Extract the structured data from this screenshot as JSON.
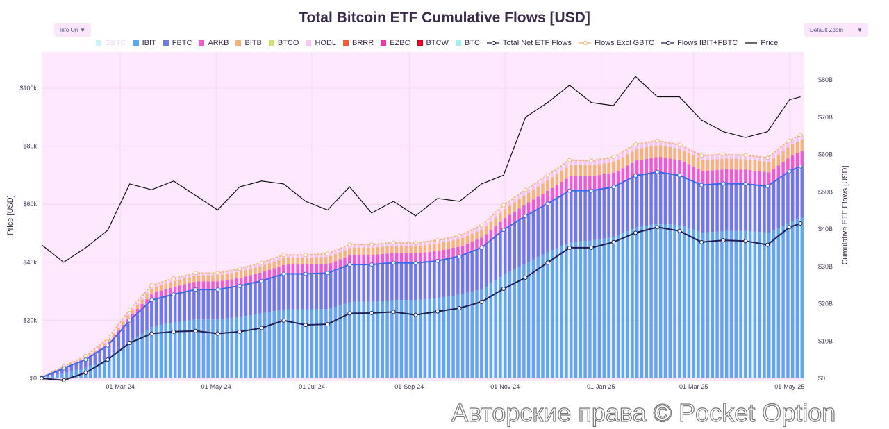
{
  "chart_data": {
    "type": "bar",
    "title": "Total Bitcoin ETF Cumulative Flows [USD]",
    "ylabel_left": "Price [USD]",
    "ylabel_right": "Cumulative ETF Flows [USD]",
    "ylim_left": [
      0,
      112000
    ],
    "ylim_right": [
      0,
      87.5
    ],
    "left_ticks": [
      "$0",
      "$20k",
      "$40k",
      "$60k",
      "$80k",
      "$100k"
    ],
    "left_tick_values": [
      0,
      20000,
      40000,
      60000,
      80000,
      100000
    ],
    "right_ticks": [
      "$0",
      "$10B",
      "$20B",
      "$30B",
      "$40B",
      "$50B",
      "$60B",
      "$70B",
      "$80B"
    ],
    "right_tick_values": [
      0,
      10,
      20,
      30,
      40,
      50,
      60,
      70,
      80
    ],
    "x_ticks": [
      "01-Mar-24",
      "01-May-24",
      "01-Jul-24",
      "01-Sep-24",
      "01-Nov-24",
      "01-Jan-25",
      "01-Mar-25",
      "01-May-25"
    ],
    "x_tick_dates": [
      "2024-03-01",
      "2024-05-01",
      "2024-07-01",
      "2024-09-01",
      "2024-11-01",
      "2025-01-01",
      "2025-03-01",
      "2025-05-01"
    ],
    "x_range": [
      "2024-01-11",
      "2025-05-10"
    ],
    "grid": true,
    "legend_placement": "top",
    "dates": [
      "2024-01-11",
      "2024-01-25",
      "2024-02-08",
      "2024-02-22",
      "2024-03-07",
      "2024-03-21",
      "2024-04-04",
      "2024-04-18",
      "2024-05-02",
      "2024-05-16",
      "2024-05-30",
      "2024-06-13",
      "2024-06-27",
      "2024-07-11",
      "2024-07-25",
      "2024-08-08",
      "2024-08-22",
      "2024-09-05",
      "2024-09-19",
      "2024-10-03",
      "2024-10-17",
      "2024-10-31",
      "2024-11-14",
      "2024-11-28",
      "2024-12-12",
      "2024-12-26",
      "2025-01-09",
      "2025-01-23",
      "2025-02-06",
      "2025-02-20",
      "2025-03-06",
      "2025-03-20",
      "2025-04-03",
      "2025-04-17",
      "2025-05-01",
      "2025-05-08"
    ],
    "series": [
      {
        "name": "IBIT",
        "color": "#5aa8f0",
        "values": [
          0.1,
          1.5,
          3.0,
          5.5,
          10,
          14,
          15,
          15.8,
          15.8,
          16.5,
          17.5,
          18.5,
          18.5,
          18.6,
          20.5,
          20.5,
          21,
          21,
          21.5,
          22.5,
          24,
          28,
          31,
          34,
          36.5,
          37,
          38,
          40.5,
          41.5,
          41,
          39,
          39.5,
          39.5,
          39,
          42,
          43
        ]
      },
      {
        "name": "FBTC",
        "color": "#6a7ae8",
        "values": [
          0.1,
          1.2,
          2.0,
          3.3,
          5.5,
          7,
          7.5,
          8,
          8,
          8.3,
          8.6,
          9.5,
          9.5,
          9.6,
          10,
          10,
          10,
          9.9,
          10,
          10.2,
          11,
          11.8,
          12.5,
          12.8,
          13.8,
          13.3,
          13.3,
          13.8,
          13.8,
          13.4,
          12.8,
          12.7,
          12.6,
          12.5,
          13.5,
          13.8
        ]
      },
      {
        "name": "ARKB",
        "color": "#f05ad2",
        "values": [
          0.04,
          0.24,
          0.48,
          0.88,
          1.4,
          1.9,
          2.1,
          2.2,
          2.2,
          2.2,
          2.4,
          2.5,
          2.5,
          2.5,
          2.6,
          2.6,
          2.6,
          2.6,
          2.7,
          2.7,
          2.9,
          3.2,
          3.4,
          3.7,
          4.0,
          3.9,
          3.9,
          4.1,
          4.1,
          4.0,
          3.8,
          3.8,
          3.8,
          3.7,
          4.0,
          4.1
        ]
      },
      {
        "name": "BITB",
        "color": "#f7b47a",
        "values": [
          0.03,
          0.18,
          0.36,
          0.66,
          1.05,
          1.44,
          1.56,
          1.62,
          1.62,
          1.68,
          1.77,
          1.86,
          1.86,
          1.89,
          1.95,
          1.95,
          1.98,
          1.95,
          2.0,
          2.04,
          2.2,
          2.4,
          2.6,
          2.8,
          3.0,
          2.9,
          2.9,
          3.1,
          3.1,
          3.0,
          2.9,
          2.9,
          2.8,
          2.8,
          3.0,
          3.1
        ]
      },
      {
        "name": "HODL",
        "color": "#f6c6f2",
        "values": [
          0,
          0.1,
          0.1,
          0.3,
          0.4,
          0.6,
          0.6,
          0.6,
          0.6,
          0.7,
          0.7,
          0.7,
          0.7,
          0.8,
          0.8,
          0.8,
          0.8,
          0.8,
          0.8,
          0.8,
          0.9,
          1.0,
          1.0,
          1.1,
          1.2,
          1.2,
          1.2,
          1.2,
          1.2,
          1.2,
          1.2,
          1.1,
          1.1,
          1.1,
          1.2,
          1.2
        ]
      }
    ],
    "total_net_etf_flows": [
      0,
      -0.5,
      1.5,
      5.0,
      9.5,
      12,
      12.5,
      12.7,
      12.0,
      12.5,
      13.5,
      15.5,
      14.3,
      14.5,
      17.4,
      17.5,
      17.8,
      17.0,
      17.9,
      18.8,
      20.5,
      24,
      27,
      31,
      35,
      35,
      36.5,
      39,
      40.5,
      39.5,
      36.5,
      37,
      36.8,
      35.8,
      40.5,
      41.5
    ],
    "price": [
      46000,
      40000,
      45000,
      51000,
      67000,
      65000,
      68000,
      63000,
      58000,
      66000,
      68000,
      67000,
      61000,
      58000,
      66000,
      57000,
      61000,
      56000,
      62000,
      61000,
      67000,
      70000,
      90000,
      95000,
      101000,
      95000,
      94000,
      104000,
      97000,
      97000,
      89000,
      85000,
      83000,
      85000,
      96000,
      97000
    ]
  },
  "controls": {
    "info_label": "Info On",
    "zoom_label": "Default Zoom",
    "caret": "▼"
  },
  "legend": [
    {
      "label": "GBTC",
      "color": "#c8f4fa",
      "kind": "box",
      "faded": true
    },
    {
      "label": "IBIT",
      "color": "#5aa8f0",
      "kind": "box"
    },
    {
      "label": "FBTC",
      "color": "#6a7ae8",
      "kind": "box"
    },
    {
      "label": "ARKB",
      "color": "#f05ad2",
      "kind": "box"
    },
    {
      "label": "BITB",
      "color": "#f7b47a",
      "kind": "box"
    },
    {
      "label": "BTCO",
      "color": "#d4dc7a",
      "kind": "box"
    },
    {
      "label": "HODL",
      "color": "#f6c6f2",
      "kind": "box"
    },
    {
      "label": "BRRR",
      "color": "#f05a32",
      "kind": "box"
    },
    {
      "label": "EZBC",
      "color": "#f03ca0",
      "kind": "box"
    },
    {
      "label": "BTCW",
      "color": "#e8001e",
      "kind": "box"
    },
    {
      "label": "BTC",
      "color": "#a0f0f0",
      "kind": "box"
    },
    {
      "label": "Total Net ETF Flows",
      "color": "#1e1e50",
      "kind": "line-marker"
    },
    {
      "label": "Flows Excl GBTC",
      "color": "#f7b47a",
      "kind": "line-marker"
    },
    {
      "label": "Flows IBIT+FBTC",
      "color": "#1e1e50",
      "kind": "line-marker"
    },
    {
      "label": "Price",
      "color": "#111111",
      "kind": "line"
    }
  ],
  "watermark": "Авторские права © Pocket Option"
}
